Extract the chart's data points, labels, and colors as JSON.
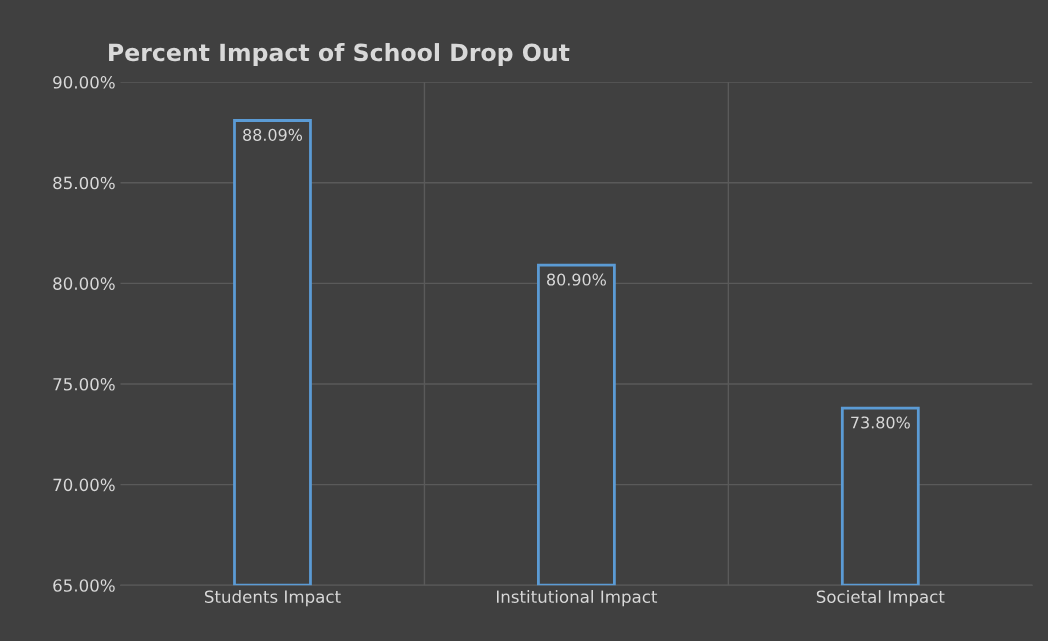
{
  "chart_data": {
    "type": "bar",
    "title": "Percent Impact of School Drop Out",
    "categories": [
      "Students Impact",
      "Institutional Impact",
      "Societal Impact"
    ],
    "values": [
      88.09,
      80.9,
      73.8
    ],
    "value_labels": [
      "88.09%",
      "80.90%",
      "73.80%"
    ],
    "color": "#5b9bd5",
    "ylim": [
      65,
      90
    ],
    "yticks": [
      {
        "value": 65,
        "label": "65.00%"
      },
      {
        "value": 70,
        "label": "70.00%"
      },
      {
        "value": 75,
        "label": "75.00%"
      },
      {
        "value": 80,
        "label": "80.00%"
      },
      {
        "value": 85,
        "label": "85.00%"
      },
      {
        "value": 90,
        "label": "90.00%"
      }
    ],
    "grid": true
  }
}
